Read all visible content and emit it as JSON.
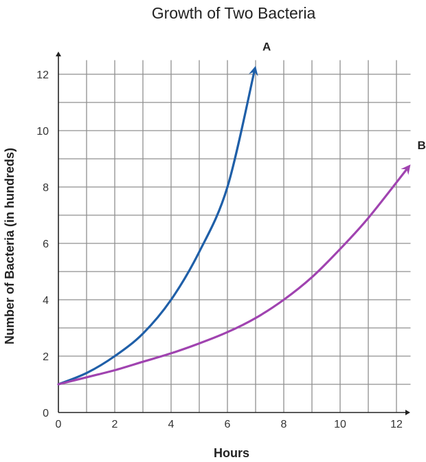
{
  "chart_data": {
    "type": "line",
    "title": "Growth of Two Bacteria",
    "xlabel": "Hours",
    "ylabel": "Number of Bacteria (in hundreds)",
    "xlim": [
      0,
      12
    ],
    "ylim": [
      0,
      12
    ],
    "x_ticks": [
      0,
      2,
      4,
      6,
      8,
      10,
      12
    ],
    "y_ticks": [
      0,
      2,
      4,
      6,
      8,
      10,
      12
    ],
    "grid": true,
    "grid_step": 1,
    "series": [
      {
        "name": "A",
        "color": "#1f5fa8",
        "x": [
          0,
          1,
          2,
          3,
          4,
          5,
          6,
          7
        ],
        "y": [
          1,
          1.4,
          2,
          2.8,
          4,
          5.7,
          8,
          12.3
        ]
      },
      {
        "name": "B",
        "color": "#a043b0",
        "x": [
          0,
          1,
          2,
          3,
          4,
          5,
          6,
          7,
          8,
          9,
          10,
          11,
          12.5
        ],
        "y": [
          1,
          1.25,
          1.5,
          1.8,
          2.1,
          2.45,
          2.85,
          3.35,
          4,
          4.8,
          5.8,
          6.9,
          8.8
        ]
      }
    ]
  }
}
